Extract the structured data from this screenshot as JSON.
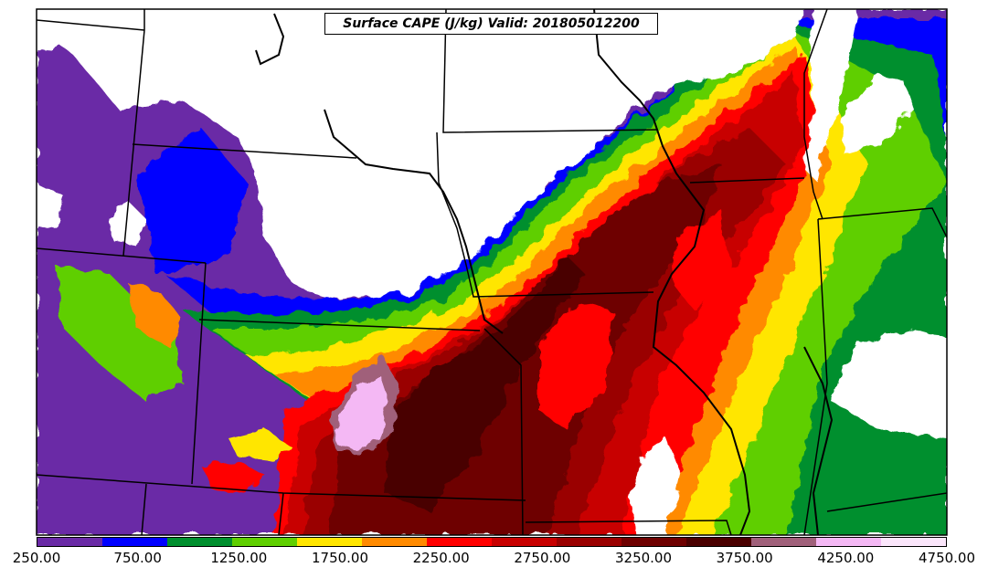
{
  "title": "Surface CAPE (J/kg) Valid: 201805012200",
  "legend": {
    "colors": [
      "#6a2aa6",
      "#0000ff",
      "#008f2e",
      "#5fcf00",
      "#ffe600",
      "#ff8a00",
      "#ff0000",
      "#c80000",
      "#9a0000",
      "#6e0000",
      "#4a0000",
      "#a0607a",
      "#f4b8f4",
      "#fbe6fb"
    ],
    "tick_labels": [
      "250.00",
      "750.00",
      "1250.00",
      "1750.00",
      "2250.00",
      "2750.00",
      "3250.00",
      "3750.00",
      "4250.00",
      "4750.00"
    ]
  }
}
